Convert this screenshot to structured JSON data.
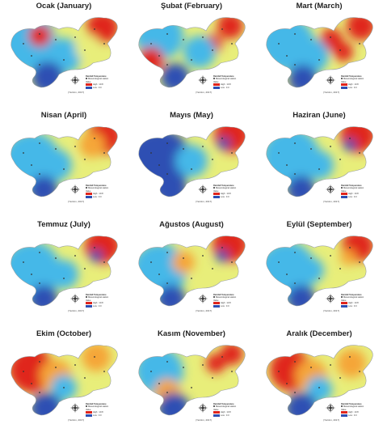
{
  "panels": [
    {
      "title": "Ocak (January)"
    },
    {
      "title": "Şubat (February)"
    },
    {
      "title": "Mart (March)"
    },
    {
      "title": "Nisan (April)"
    },
    {
      "title": "Mayıs (May)"
    },
    {
      "title": "Haziran (June)"
    },
    {
      "title": "Temmuz (July)"
    },
    {
      "title": "Ağustos (August)"
    },
    {
      "title": "Eylül (September)"
    },
    {
      "title": "Ekim (October)"
    },
    {
      "title": "Kasım (November)"
    },
    {
      "title": "Aralık (December)"
    }
  ],
  "legend": {
    "title": "Rainfall Temperature",
    "station": "Meteorological station",
    "value_label": "Value",
    "high": "High : 10.8",
    "low": "Low : 0.0"
  },
  "credit": "(Yazılım, 2017)",
  "colors": {
    "low": "#2d4fb3",
    "mid_low": "#45b8e8",
    "mid": "#e8ee7a",
    "mid_high": "#f5a637",
    "high": "#e0251c",
    "station": "#333333"
  },
  "icons": {
    "compass": "north-arrow-compass-icon",
    "station": "station-dot-icon"
  }
}
